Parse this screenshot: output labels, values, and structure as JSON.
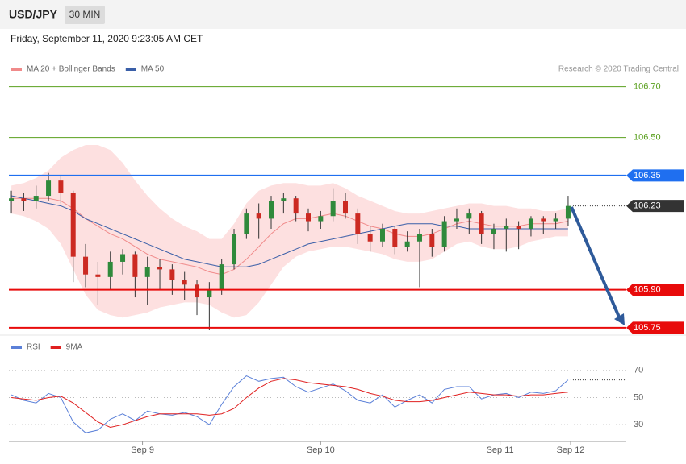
{
  "chart_data": {
    "type": "candlestick",
    "title": "USD/JPY",
    "timeframe": "30 MIN",
    "subtitle": "Friday, September 11, 2020 9:23:05 AM CET",
    "credit": "Research © 2020 Trading Central",
    "up_color": "#2f8a3b",
    "down_color": "#cc2a22",
    "xlim": [
      -0.2,
      49.7
    ],
    "xticks": [
      {
        "value": 10.6,
        "label": "Sep 9"
      },
      {
        "value": 25.0,
        "label": "Sep 10"
      },
      {
        "value": 39.5,
        "label": "Sep 11"
      },
      {
        "value": 45.2,
        "label": "Sep 12"
      }
    ],
    "ylim": [
      105.74,
      106.74
    ],
    "candles": [
      [
        106.25,
        106.29,
        106.2,
        106.26
      ],
      [
        106.26,
        106.28,
        106.21,
        106.25
      ],
      [
        106.25,
        106.31,
        106.22,
        106.27
      ],
      [
        106.27,
        106.36,
        106.25,
        106.33
      ],
      [
        106.33,
        106.35,
        106.24,
        106.28
      ],
      [
        106.28,
        106.29,
        105.93,
        106.03
      ],
      [
        106.03,
        106.08,
        105.91,
        105.96
      ],
      [
        105.96,
        106.01,
        105.84,
        105.95
      ],
      [
        105.95,
        106.05,
        105.9,
        106.01
      ],
      [
        106.01,
        106.06,
        105.96,
        106.04
      ],
      [
        106.04,
        106.05,
        105.87,
        105.95
      ],
      [
        105.95,
        106.03,
        105.84,
        105.99
      ],
      [
        105.99,
        106.02,
        105.9,
        105.98
      ],
      [
        105.98,
        106.0,
        105.88,
        105.94
      ],
      [
        105.94,
        105.97,
        105.86,
        105.92
      ],
      [
        105.92,
        105.94,
        105.8,
        105.87
      ],
      [
        105.87,
        105.93,
        105.74,
        105.9
      ],
      [
        105.9,
        106.02,
        105.88,
        106.0
      ],
      [
        106.0,
        106.14,
        105.98,
        106.12
      ],
      [
        106.12,
        106.22,
        106.1,
        106.2
      ],
      [
        106.2,
        106.24,
        106.1,
        106.18
      ],
      [
        106.18,
        106.27,
        106.14,
        106.25
      ],
      [
        106.25,
        106.28,
        106.2,
        106.26
      ],
      [
        106.26,
        106.27,
        106.17,
        106.2
      ],
      [
        106.2,
        106.22,
        106.13,
        106.17
      ],
      [
        106.17,
        106.21,
        106.14,
        106.19
      ],
      [
        106.19,
        106.3,
        106.17,
        106.25
      ],
      [
        106.25,
        106.28,
        106.18,
        106.2
      ],
      [
        106.2,
        106.22,
        106.08,
        106.12
      ],
      [
        106.12,
        106.15,
        106.05,
        106.09
      ],
      [
        106.09,
        106.16,
        106.07,
        106.14
      ],
      [
        106.14,
        106.15,
        106.04,
        106.07
      ],
      [
        106.07,
        106.13,
        106.05,
        106.09
      ],
      [
        106.09,
        106.14,
        105.91,
        106.12
      ],
      [
        106.12,
        106.14,
        106.03,
        106.07
      ],
      [
        106.07,
        106.19,
        106.05,
        106.17
      ],
      [
        106.17,
        106.22,
        106.14,
        106.18
      ],
      [
        106.18,
        106.22,
        106.12,
        106.2
      ],
      [
        106.2,
        106.21,
        106.08,
        106.12
      ],
      [
        106.12,
        106.16,
        106.06,
        106.14
      ],
      [
        106.14,
        106.18,
        106.05,
        106.15
      ],
      [
        106.15,
        106.17,
        106.06,
        106.14
      ],
      [
        106.14,
        106.19,
        106.11,
        106.18
      ],
      [
        106.18,
        106.19,
        106.12,
        106.17
      ],
      [
        106.17,
        106.2,
        106.14,
        106.18
      ],
      [
        106.18,
        106.27,
        106.15,
        106.23
      ]
    ],
    "series": [
      {
        "name": "MA 20 + Bollinger Bands",
        "color": "#f08a8a",
        "band_color": "#fde0e0",
        "values": [
          106.26,
          106.26,
          106.26,
          106.26,
          106.25,
          106.22,
          106.18,
          106.15,
          106.12,
          106.1,
          106.07,
          106.04,
          106.02,
          106.01,
          106.0,
          105.99,
          105.97,
          105.96,
          105.98,
          106.02,
          106.07,
          106.12,
          106.16,
          106.18,
          106.18,
          106.19,
          106.2,
          106.19,
          106.17,
          106.15,
          106.14,
          106.12,
          106.11,
          106.11,
          106.12,
          106.14,
          106.16,
          106.17,
          106.16,
          106.15,
          106.15,
          106.15,
          106.16,
          106.16,
          106.16,
          106.17
        ],
        "upper": [
          106.31,
          106.32,
          106.34,
          106.37,
          106.42,
          106.45,
          106.47,
          106.47,
          106.45,
          106.4,
          106.33,
          106.27,
          106.22,
          106.18,
          106.15,
          106.13,
          106.1,
          106.1,
          106.16,
          106.24,
          106.29,
          106.31,
          106.32,
          106.32,
          106.31,
          106.31,
          106.32,
          106.3,
          106.27,
          106.25,
          106.23,
          106.21,
          106.2,
          106.2,
          106.21,
          106.22,
          106.23,
          106.24,
          106.24,
          106.23,
          106.23,
          106.22,
          106.22,
          106.21,
          106.21,
          106.22
        ],
        "lower": [
          106.2,
          106.19,
          106.17,
          106.14,
          106.08,
          105.98,
          105.88,
          105.82,
          105.8,
          105.79,
          105.8,
          105.81,
          105.83,
          105.84,
          105.85,
          105.85,
          105.84,
          105.81,
          105.79,
          105.8,
          105.85,
          105.92,
          105.99,
          106.03,
          106.05,
          106.06,
          106.07,
          106.07,
          106.06,
          106.05,
          106.04,
          106.02,
          106.01,
          106.01,
          106.02,
          106.05,
          106.08,
          106.09,
          106.07,
          106.06,
          106.06,
          106.07,
          106.09,
          106.1,
          106.11,
          106.11
        ]
      },
      {
        "name": "MA 50",
        "color": "#3a5fa8",
        "values": [
          106.27,
          106.26,
          106.25,
          106.24,
          106.23,
          106.21,
          106.18,
          106.16,
          106.14,
          106.12,
          106.1,
          106.08,
          106.06,
          106.04,
          106.02,
          106.01,
          106.0,
          105.99,
          105.99,
          105.99,
          106.0,
          106.02,
          106.04,
          106.06,
          106.08,
          106.09,
          106.1,
          106.11,
          106.12,
          106.13,
          106.14,
          106.15,
          106.16,
          106.16,
          106.16,
          106.15,
          106.15,
          106.14,
          106.14,
          106.14,
          106.14,
          106.14,
          106.14,
          106.14,
          106.14,
          106.14
        ]
      }
    ],
    "levels": [
      {
        "value": 106.7,
        "label": "106.70",
        "color": "#5aa01e",
        "box": false
      },
      {
        "value": 106.5,
        "label": "106.50",
        "color": "#5aa01e",
        "box": false
      },
      {
        "value": 106.35,
        "label": "106.35",
        "color": "#1f6ff0",
        "box": true
      },
      {
        "value": 106.23,
        "label": "106.23",
        "color": "#333333",
        "box": true,
        "dotted": true
      },
      {
        "value": 105.9,
        "label": "105.90",
        "color": "#e80b0b",
        "box": true
      },
      {
        "value": 105.75,
        "label": "105.75",
        "color": "#e80b0b",
        "box": true
      }
    ],
    "indicator": {
      "ylim": [
        20,
        80
      ],
      "yticks": [
        70,
        50,
        30
      ],
      "series": [
        {
          "name": "RSI",
          "color": "#5b80d8",
          "values": [
            52,
            48,
            46,
            53,
            50,
            32,
            24,
            26,
            34,
            38,
            33,
            40,
            38,
            37,
            39,
            36,
            30,
            45,
            58,
            66,
            62,
            64,
            65,
            58,
            54,
            57,
            60,
            55,
            48,
            46,
            52,
            43,
            48,
            52,
            46,
            56,
            58,
            58,
            49,
            52,
            53,
            50,
            54,
            53,
            55,
            63
          ]
        },
        {
          "name": "9MA",
          "color": "#e02020",
          "values": [
            50,
            49,
            48,
            50,
            51,
            46,
            39,
            32,
            28,
            30,
            33,
            36,
            38,
            38,
            38,
            38,
            37,
            38,
            42,
            50,
            57,
            62,
            64,
            63,
            61,
            60,
            59,
            58,
            56,
            53,
            51,
            48,
            47,
            47,
            48,
            50,
            52,
            54,
            53,
            52,
            52,
            51,
            52,
            52,
            53,
            54
          ]
        }
      ]
    }
  }
}
